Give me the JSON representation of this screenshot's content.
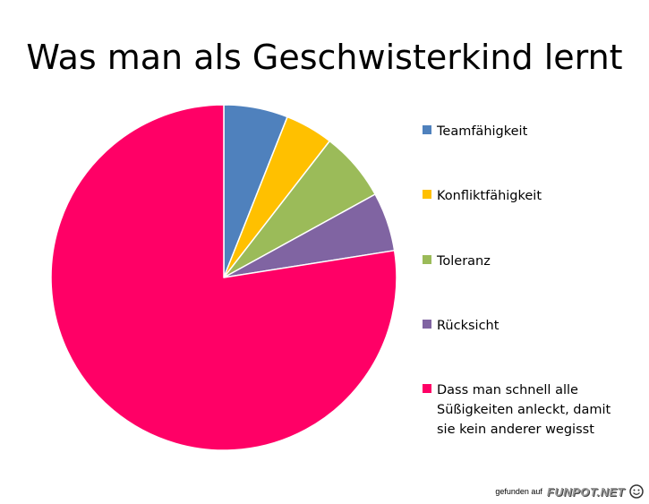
{
  "chart_data": {
    "type": "pie",
    "title": "Was man als Geschwisterkind lernt",
    "start_angle_deg": 0,
    "direction": "clockwise",
    "legend_position": "right",
    "slices": [
      {
        "label": "Teamfähigkeit",
        "value": 6,
        "color": "#4F81BD"
      },
      {
        "label": "Konfliktfähigkeit",
        "value": 4.5,
        "color": "#FFC000"
      },
      {
        "label": "Toleranz",
        "value": 6.5,
        "color": "#9BBB59"
      },
      {
        "label": "Rücksicht",
        "value": 5.5,
        "color": "#8064A2"
      },
      {
        "label": "Dass man schnell alle Süßigkeiten anleckt, damit sie kein anderer wegisst",
        "value": 77.5,
        "color": "#FF0066"
      }
    ]
  },
  "legend": {
    "lines": [
      [
        "Teamfähigkeit"
      ],
      [
        "Konfliktfähigkeit"
      ],
      [
        "Toleranz"
      ],
      [
        "Rücksicht"
      ],
      [
        "Dass man schnell alle",
        "Süßigkeiten anleckt, damit",
        "sie kein anderer wegisst"
      ]
    ]
  },
  "footer": {
    "prefix": "gefunden auf",
    "brand": "FUNPOT.NET",
    "logo_icon": "funpot-face-icon"
  }
}
